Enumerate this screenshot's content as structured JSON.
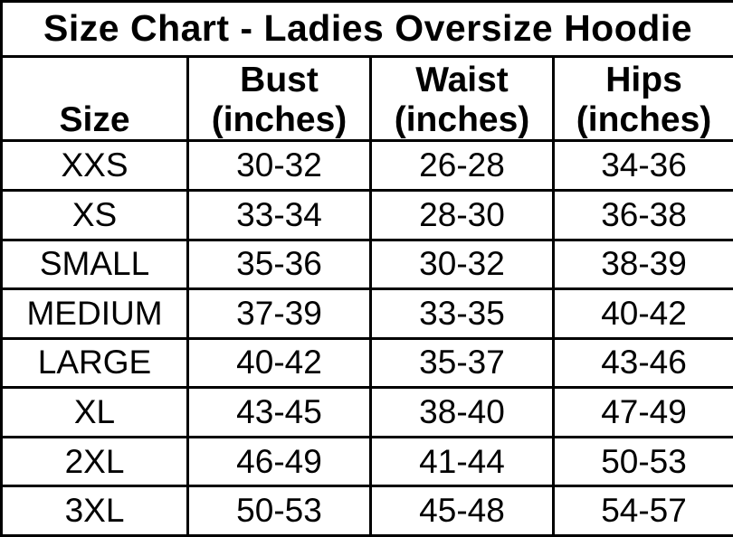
{
  "chart_data": {
    "type": "table",
    "title": "Size Chart - Ladies Oversize Hoodie",
    "columns": [
      {
        "label": "Size",
        "sub": ""
      },
      {
        "label": "Bust",
        "sub": "(inches)"
      },
      {
        "label": "Waist",
        "sub": "(inches)"
      },
      {
        "label": "Hips",
        "sub": "(inches)"
      }
    ],
    "rows": [
      {
        "size": "XXS",
        "bust": "30-32",
        "waist": "26-28",
        "hips": "34-36"
      },
      {
        "size": "XS",
        "bust": "33-34",
        "waist": "28-30",
        "hips": "36-38"
      },
      {
        "size": "SMALL",
        "bust": "35-36",
        "waist": "30-32",
        "hips": "38-39"
      },
      {
        "size": "MEDIUM",
        "bust": "37-39",
        "waist": "33-35",
        "hips": "40-42"
      },
      {
        "size": "LARGE",
        "bust": "40-42",
        "waist": "35-37",
        "hips": "43-46"
      },
      {
        "size": "XL",
        "bust": "43-45",
        "waist": "38-40",
        "hips": "47-49"
      },
      {
        "size": "2XL",
        "bust": "46-49",
        "waist": "41-44",
        "hips": "50-53"
      },
      {
        "size": "3XL",
        "bust": "50-53",
        "waist": "45-48",
        "hips": "54-57"
      }
    ],
    "units": "inches",
    "layout": {
      "grid": "on",
      "header_align": "bottom",
      "cell_align": "center"
    }
  },
  "colors": {
    "text": "#000000",
    "background": "#ffffff",
    "border": "#000000"
  }
}
